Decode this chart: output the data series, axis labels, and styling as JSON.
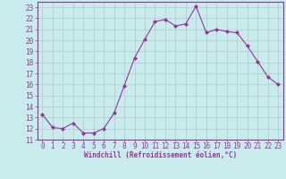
{
  "x": [
    0,
    1,
    2,
    3,
    4,
    5,
    6,
    7,
    8,
    9,
    10,
    11,
    12,
    13,
    14,
    15,
    16,
    17,
    18,
    19,
    20,
    21,
    22,
    23
  ],
  "y": [
    13.3,
    12.1,
    12.0,
    12.5,
    11.6,
    11.6,
    12.0,
    13.4,
    15.9,
    18.4,
    20.1,
    21.7,
    21.9,
    21.3,
    21.5,
    23.1,
    20.7,
    21.0,
    20.8,
    20.7,
    19.5,
    18.1,
    16.7,
    16.0
  ],
  "line_color": "#993399",
  "marker": "D",
  "marker_size": 2,
  "bg_color": "#c8ecec",
  "grid_color": "#b0c8c8",
  "xlabel": "Windchill (Refroidissement éolien,°C)",
  "xlabel_color": "#993399",
  "ylim": [
    11,
    23.5
  ],
  "xlim": [
    -0.5,
    23.5
  ],
  "yticks": [
    11,
    12,
    13,
    14,
    15,
    16,
    17,
    18,
    19,
    20,
    21,
    22,
    23
  ],
  "xticks": [
    0,
    1,
    2,
    3,
    4,
    5,
    6,
    7,
    8,
    9,
    10,
    11,
    12,
    13,
    14,
    15,
    16,
    17,
    18,
    19,
    20,
    21,
    22,
    23
  ],
  "tick_fontsize": 5.5,
  "xlabel_fontsize": 5.5
}
